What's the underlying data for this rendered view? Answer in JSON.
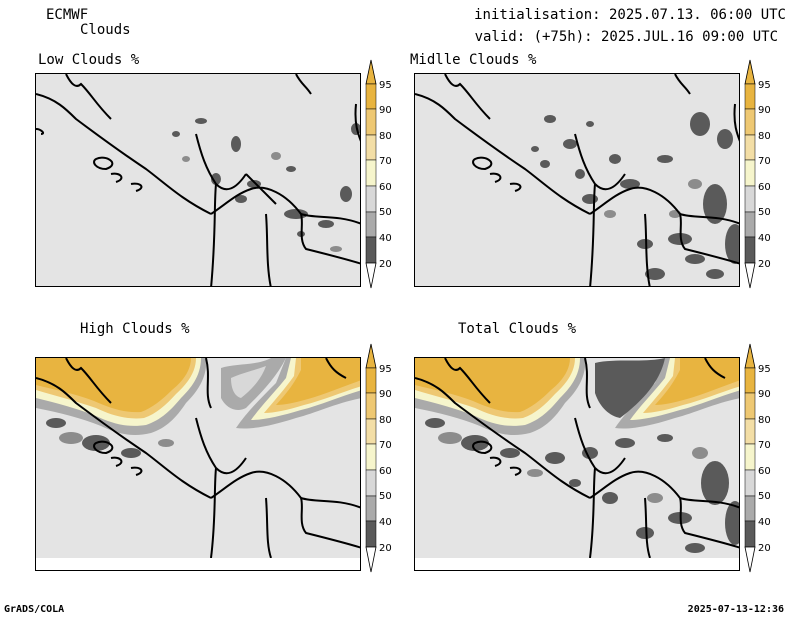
{
  "header": {
    "model": "ECMWF",
    "product": "Clouds",
    "init": "initialisation: 2025.07.13. 06:00 UTC",
    "valid": "valid: (+75h): 2025.JUL.16 09:00 UTC"
  },
  "panels": [
    {
      "title": "Low Clouds %"
    },
    {
      "title": "Midlle Clouds %"
    },
    {
      "title": "High Clouds %"
    },
    {
      "title": "Total Clouds %"
    }
  ],
  "colorbar": {
    "levels": [
      "95",
      "90",
      "80",
      "70",
      "60",
      "50",
      "40",
      "20"
    ],
    "colors": {
      "c95": "#e8b440",
      "c90": "#eec873",
      "c80": "#f3dea6",
      "c70": "#f6f5cc",
      "c60": "#d8d8d8",
      "c50": "#aaaaaa",
      "c40": "#8c8c8c",
      "c20": "#5a5a5a",
      "background": "#e4e4e4"
    }
  },
  "footer": {
    "left": "GrADS/COLA",
    "right": "2025-07-13-12:36"
  }
}
